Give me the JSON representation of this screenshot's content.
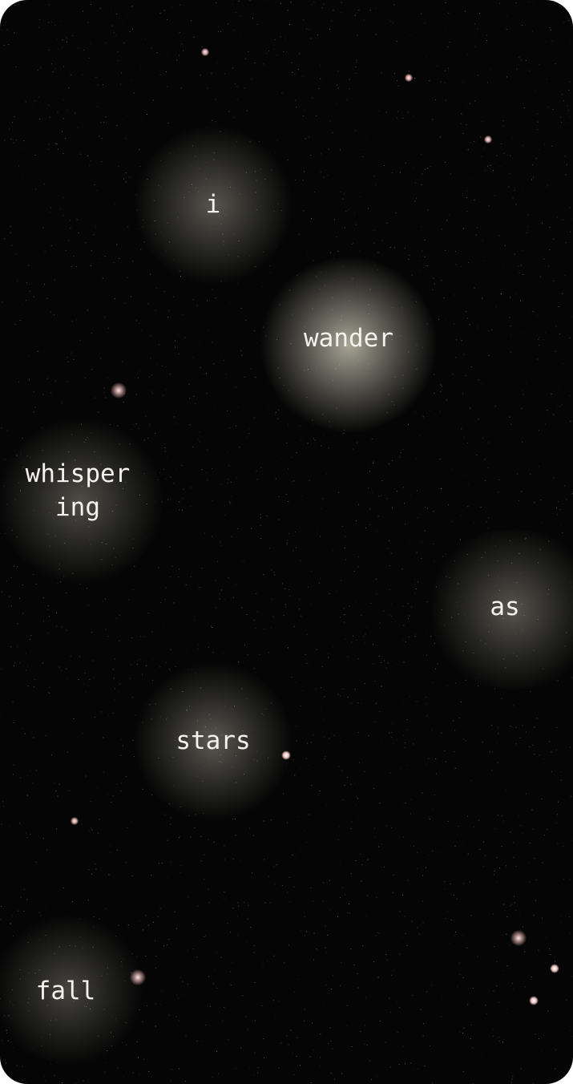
{
  "scene": {
    "background_color": "#050505",
    "glow_color": "#d8d5c4",
    "star_color": "#ffe8e8"
  },
  "words": [
    {
      "id": "word-i",
      "text": "i"
    },
    {
      "id": "word-wander",
      "text": "wander"
    },
    {
      "id": "word-whispering",
      "text": "whisper\ning"
    },
    {
      "id": "word-as",
      "text": "as"
    },
    {
      "id": "word-stars",
      "text": "stars"
    },
    {
      "id": "word-fall",
      "text": "fall"
    }
  ]
}
